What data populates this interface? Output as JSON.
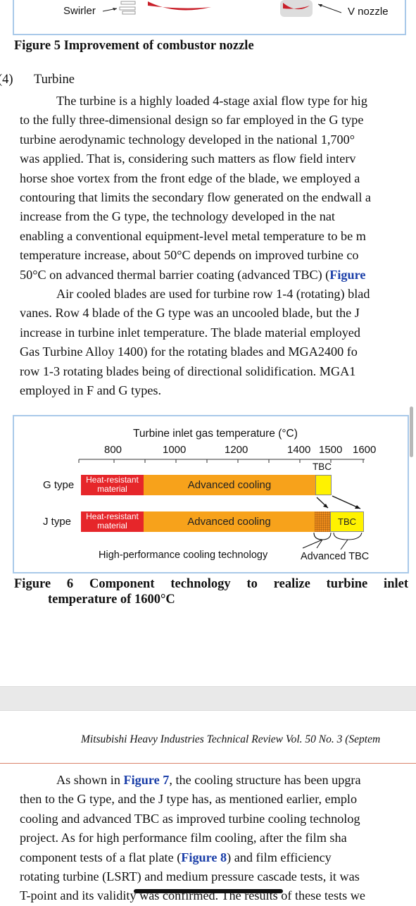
{
  "fig5": {
    "swirler_label": "Swirler",
    "v_nozzle_label": "V nozzle",
    "caption": "Figure 5 Improvement of combustor nozzle"
  },
  "section": {
    "number": "(4)",
    "title": "Turbine"
  },
  "para1": [
    "The turbine is a highly loaded 4-stage axial flow type for hig",
    "to the fully three-dimensional design so far employed in the G type",
    "turbine aerodynamic technology developed in the national 1,700°",
    "was applied. That is, considering such matters as flow field interv",
    "horse shoe vortex from the front edge of the blade, we employed a",
    "contouring that limits the secondary flow generated on the endwall a",
    "increase from the G type, the technology developed in the nat",
    "enabling a conventional equipment-level metal temperature to be m",
    "temperature increase, about 50°C depends on improved turbine co",
    "50°C on advanced thermal barrier coating (advanced TBC) ("
  ],
  "para1_link": "Figure",
  "para2": [
    "Air cooled blades are used for turbine row 1-4 (rotating) blad",
    "vanes. Row 4 blade of the G type was an uncooled blade, but the J",
    "increase in turbine inlet temperature. The blade material employed",
    "Gas Turbine Alloy 1400) for the rotating blades and MGA2400 fo",
    "row 1-3 rotating blades being of directional solidification. MGA1",
    "employed in F and G types."
  ],
  "fig6": {
    "axis_title": "Turbine inlet gas temperature (°C)",
    "ticks": [
      "800",
      "1000",
      "1200",
      "1400",
      "1500",
      "1600"
    ],
    "tbc_top": "TBC",
    "g_label": "G type",
    "j_label": "J type",
    "heat_resistant": "Heat-resistant",
    "material": "material",
    "advanced_cooling": "Advanced cooling",
    "tbc_j": "TBC",
    "hp_cooling": "High-performance cooling technology",
    "advanced_tbc": "Advanced TBC",
    "caption_line1": "Figure 6 Component technology to realize turbine inlet",
    "caption_line2": "temperature of 1600°C",
    "colors": {
      "red": "#e6262a",
      "orange": "#f7a21b",
      "yellow": "#fff200",
      "frame": "#a9c9e9"
    }
  },
  "footer": "Mitsubishi Heavy Industries Technical Review Vol. 50 No. 3 (Septem",
  "para3_prefix": "As shown in ",
  "para3_link": "Figure 7",
  "para3_first_rest": ", the cooling structure has been upgra",
  "para3": [
    "then to the G type, and the J type has, as mentioned earlier, emplo",
    "cooling and advanced TBC as improved turbine cooling technolog",
    "project. As for high performance film cooling, after the film sha"
  ],
  "para3_l5_a": "component tests of a flat plate (",
  "para3_l5_link": "Figure 8",
  "para3_l5_b": ") and film efficiency",
  "para3_tail": [
    "rotating turbine (LSRT) and medium pressure cascade tests, it was",
    "T-point and its validity was confirmed. The results of these tests we"
  ]
}
